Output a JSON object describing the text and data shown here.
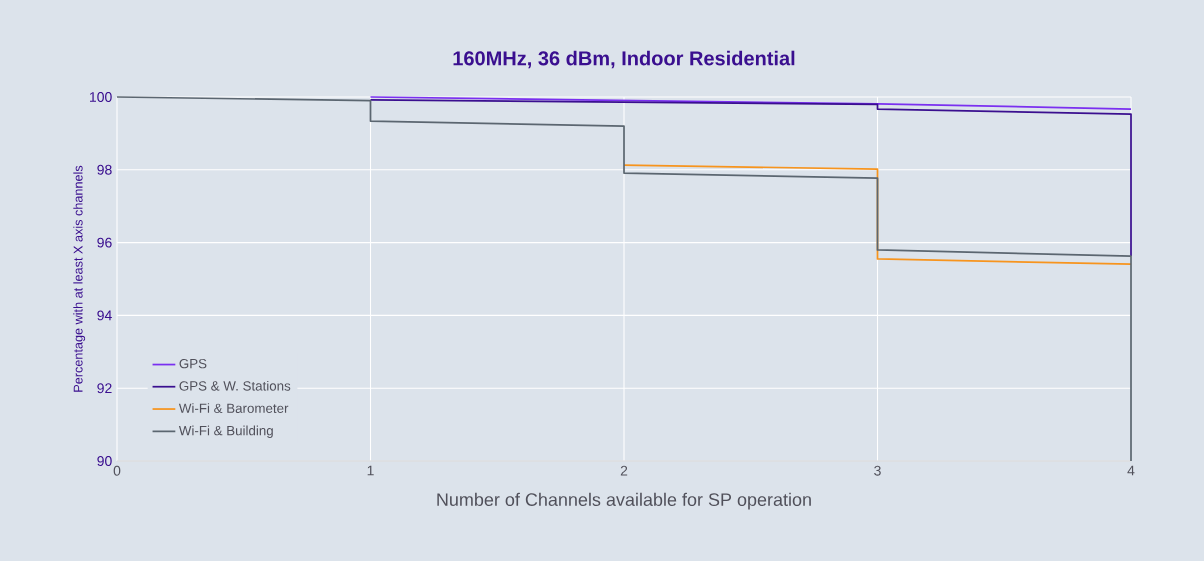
{
  "chart_data": {
    "type": "line",
    "title": "160MHz, 36 dBm, Indoor Residential",
    "xlabel": "Number of Channels available for SP operation",
    "ylabel": "Percentage with at least X axis channels",
    "xlim": [
      0,
      4
    ],
    "xticks": [
      0,
      1,
      2,
      3,
      4
    ],
    "ylim": [
      90,
      100
    ],
    "yticks": [
      90,
      92,
      94,
      96,
      98,
      100
    ],
    "grid": true,
    "legend": "bottom left",
    "marker": "none",
    "line_style": "solid",
    "series": [
      {
        "name": "GPS",
        "color": "#7a2ff0",
        "x": [
          1,
          3,
          4
        ],
        "values": [
          100.0,
          99.81,
          99.67
        ]
      },
      {
        "name": "GPS & W. Stations",
        "color": "#3a0f8f",
        "x": [
          1,
          3,
          3,
          4,
          4
        ],
        "values": [
          99.92,
          99.8,
          99.67,
          99.53,
          95.63
        ]
      },
      {
        "name": "Wi-Fi & Barometer",
        "color": "#f7941d",
        "x": [
          2,
          3,
          3,
          4
        ],
        "values": [
          98.13,
          98.02,
          95.55,
          95.41
        ]
      },
      {
        "name": "Wi-Fi & Building",
        "color": "#5b6670",
        "x": [
          0,
          1,
          1,
          2,
          2,
          3,
          3,
          4,
          4
        ],
        "values": [
          100,
          99.9,
          99.34,
          99.2,
          97.91,
          97.77,
          95.8,
          95.63,
          90
        ]
      }
    ]
  }
}
